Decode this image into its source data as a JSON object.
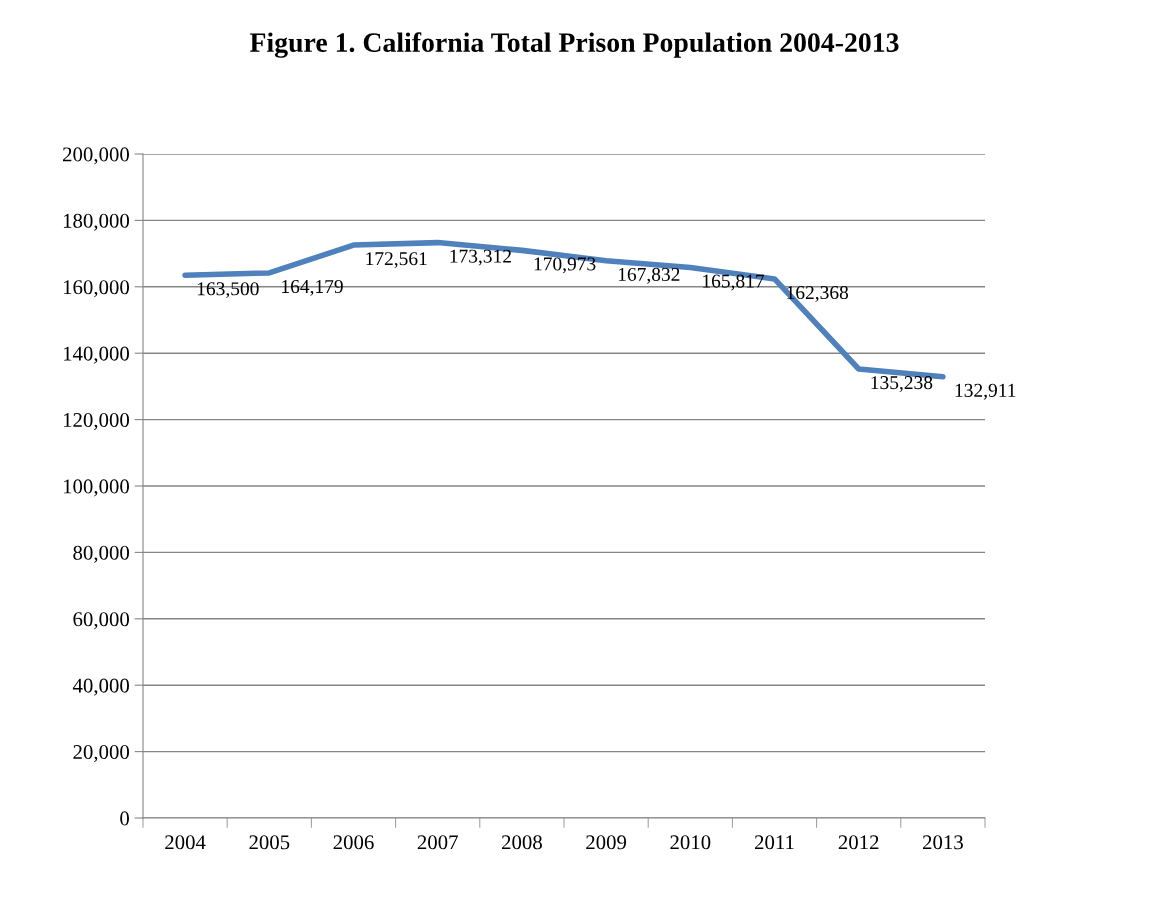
{
  "chart_data": {
    "type": "line",
    "title": "Figure 1. California Total Prison Population 2004-2013",
    "categories": [
      "2004",
      "2005",
      "2006",
      "2007",
      "2008",
      "2009",
      "2010",
      "2011",
      "2012",
      "2013"
    ],
    "series": [
      {
        "color": "#4f81bd",
        "values": [
          163500,
          164179,
          172561,
          173312,
          170973,
          167832,
          165817,
          162368,
          135238,
          132911
        ]
      }
    ],
    "value_labels": [
      "163,500",
      "164,179",
      "172,561",
      "173,312",
      "170,973",
      "167,832",
      "165,817",
      "162,368",
      "135,238",
      "132,911"
    ],
    "ylim": [
      0,
      200000
    ],
    "yticks": [
      {
        "value": 0,
        "label": "0"
      },
      {
        "value": 20000,
        "label": "20,000"
      },
      {
        "value": 40000,
        "label": "40,000"
      },
      {
        "value": 60000,
        "label": "60,000"
      },
      {
        "value": 80000,
        "label": "80,000"
      },
      {
        "value": 100000,
        "label": "100,000"
      },
      {
        "value": 120000,
        "label": "120,000"
      },
      {
        "value": 140000,
        "label": "140,000"
      },
      {
        "value": 160000,
        "label": "160,000"
      },
      {
        "value": 180000,
        "label": "180,000"
      },
      {
        "value": 200000,
        "label": "200,000"
      }
    ],
    "grid": "y",
    "marker": "none",
    "line_style": "solid"
  }
}
